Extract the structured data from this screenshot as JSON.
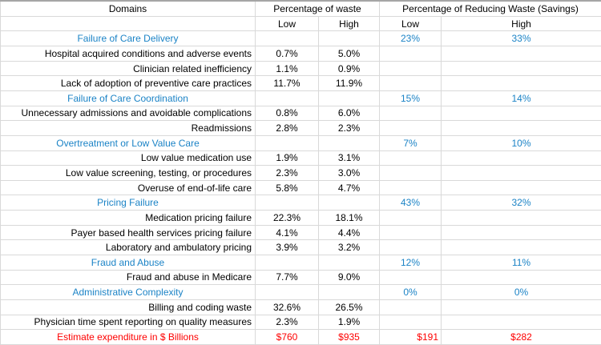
{
  "header": {
    "domains": "Domains",
    "waste_group": "Percentage of waste",
    "savings_group": "Percentage of Reducing Waste (Savings)",
    "low": "Low",
    "high": "High"
  },
  "colors": {
    "category_text": "#1b83c6",
    "total_text": "#fe0000",
    "grid": "#d9d9d9"
  },
  "rows": [
    {
      "type": "category",
      "label": "Failure of Care Delivery",
      "savings_low": "23%",
      "savings_high": "33%"
    },
    {
      "type": "item",
      "label": "Hospital acquired conditions and adverse events",
      "waste_low": "0.7%",
      "waste_high": "5.0%"
    },
    {
      "type": "item",
      "label": "Clinician related inefficiency",
      "waste_low": "1.1%",
      "waste_high": "0.9%"
    },
    {
      "type": "item",
      "label": "Lack of adoption of preventive care practices",
      "waste_low": "11.7%",
      "waste_high": "11.9%"
    },
    {
      "type": "category",
      "label": "Failure of Care Coordination",
      "savings_low": "15%",
      "savings_high": "14%"
    },
    {
      "type": "item",
      "label": "Unnecessary admissions and avoidable complications",
      "waste_low": "0.8%",
      "waste_high": "6.0%"
    },
    {
      "type": "item",
      "label": "Readmissions",
      "waste_low": "2.8%",
      "waste_high": "2.3%"
    },
    {
      "type": "category",
      "label": "Overtreatment or Low Value Care",
      "savings_low": "7%",
      "savings_high": "10%"
    },
    {
      "type": "item",
      "label": "Low value medication use",
      "waste_low": "1.9%",
      "waste_high": "3.1%"
    },
    {
      "type": "item",
      "label": "Low value screening, testing, or procedures",
      "waste_low": "2.3%",
      "waste_high": "3.0%"
    },
    {
      "type": "item",
      "label": "Overuse of end-of-life care",
      "waste_low": "5.8%",
      "waste_high": "4.7%"
    },
    {
      "type": "category",
      "label": "Pricing Failure",
      "savings_low": "43%",
      "savings_high": "32%"
    },
    {
      "type": "item",
      "label": "Medication pricing failure",
      "waste_low": "22.3%",
      "waste_high": "18.1%"
    },
    {
      "type": "item",
      "label": "Payer based health services pricing failure",
      "waste_low": "4.1%",
      "waste_high": "4.4%"
    },
    {
      "type": "item",
      "label": "Laboratory and ambulatory pricing",
      "waste_low": "3.9%",
      "waste_high": "3.2%"
    },
    {
      "type": "category",
      "label": "Fraud and Abuse",
      "savings_low": "12%",
      "savings_high": "11%"
    },
    {
      "type": "item",
      "label": "Fraud and abuse in Medicare",
      "waste_low": "7.7%",
      "waste_high": "9.0%"
    },
    {
      "type": "category",
      "label": "Administrative Complexity",
      "savings_low": "0%",
      "savings_high": "0%"
    },
    {
      "type": "item",
      "label": "Billing and coding waste",
      "waste_low": "32.6%",
      "waste_high": "26.5%"
    },
    {
      "type": "item",
      "label": "Physician time spent reporting on quality measures",
      "waste_low": "2.3%",
      "waste_high": "1.9%"
    },
    {
      "type": "total",
      "label": "Estimate expenditure in $ Billions",
      "waste_low": "$760",
      "waste_high": "$935",
      "savings_low": "$191",
      "savings_high": "$282"
    }
  ]
}
